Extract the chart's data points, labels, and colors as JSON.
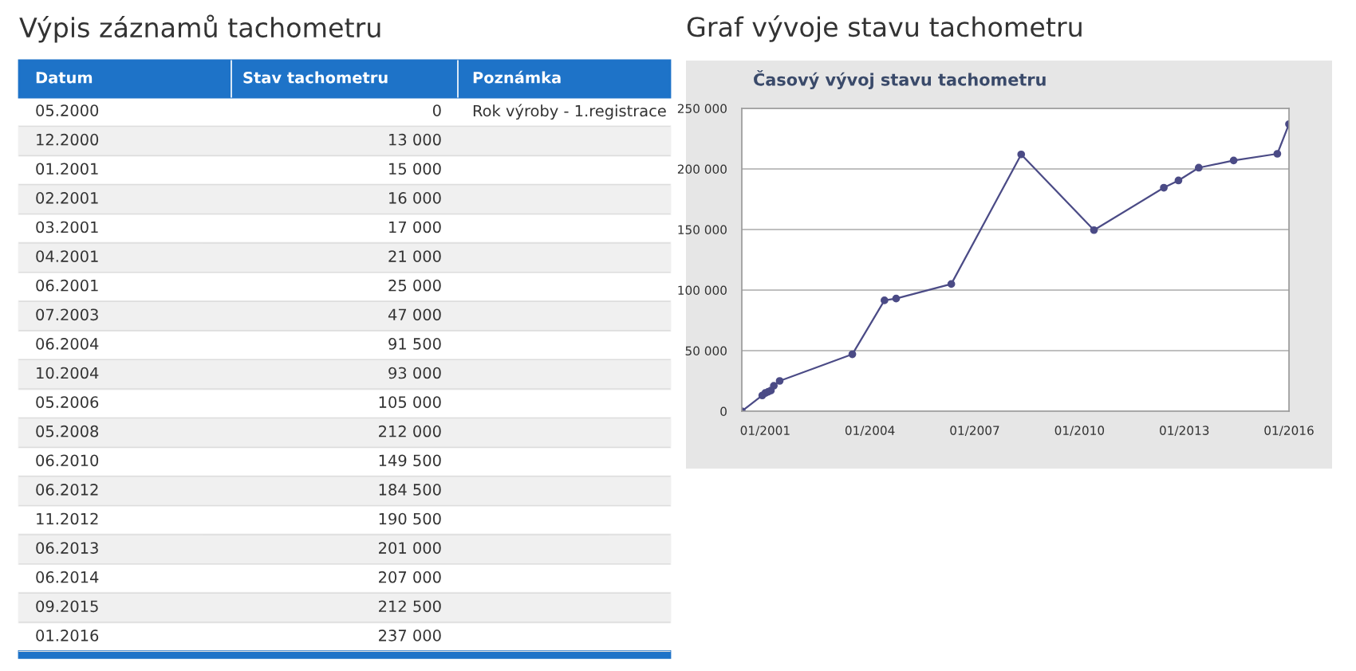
{
  "chart_data": [
    {
      "type": "other",
      "title": "Výpis záznamů tachometru",
      "annotations": [
        "Datum",
        "Stav tachometru",
        "Poznámka",
        "Rok výroby - 1.registrace"
      ],
      "categories": [
        "05.2000",
        "12.2000",
        "01.2001",
        "02.2001",
        "03.2001",
        "04.2001",
        "06.2001",
        "07.2003",
        "06.2004",
        "10.2004",
        "05.2006",
        "05.2008",
        "06.2010",
        "06.2012",
        "11.2012",
        "06.2013",
        "06.2014",
        "09.2015",
        "01.2016"
      ],
      "values": [
        0,
        13000,
        15000,
        16000,
        17000,
        21000,
        25000,
        47000,
        91500,
        93000,
        105000,
        212000,
        149500,
        184500,
        190500,
        201000,
        207000,
        212500,
        237000
      ],
      "data_labels": true
    },
    {
      "type": "line",
      "title": "Graf vývoje stavu tachometru",
      "subtitle": "Časový vývoj stavu tachometru",
      "x": [
        "2000-05",
        "2000-12",
        "2001-01",
        "2001-02",
        "2001-03",
        "2001-04",
        "2001-06",
        "2003-07",
        "2004-06",
        "2004-10",
        "2006-05",
        "2008-05",
        "2010-06",
        "2012-06",
        "2012-11",
        "2013-06",
        "2014-06",
        "2015-09",
        "2016-01"
      ],
      "series": [
        {
          "color": "#4b4b86",
          "values": [
            0,
            13000,
            15000,
            16000,
            17000,
            21000,
            25000,
            47000,
            91500,
            93000,
            105000,
            212000,
            149500,
            184500,
            190500,
            201000,
            207000,
            212500,
            237000
          ]
        }
      ],
      "xlim": [
        "2000-05",
        "2016-01"
      ],
      "xticks": [
        {
          "value": "2001-01",
          "label": "01/2001"
        },
        {
          "value": "2004-01",
          "label": "01/2004"
        },
        {
          "value": "2007-01",
          "label": "01/2007"
        },
        {
          "value": "2010-01",
          "label": "01/2010"
        },
        {
          "value": "2013-01",
          "label": "01/2013"
        },
        {
          "value": "2016-01",
          "label": "01/2016"
        }
      ],
      "ylim": [
        0,
        250000
      ],
      "yticks": [
        {
          "value": 0,
          "label": "0"
        },
        {
          "value": 50000,
          "label": "50 000"
        },
        {
          "value": 100000,
          "label": "100 000"
        },
        {
          "value": 150000,
          "label": "150 000"
        },
        {
          "value": 200000,
          "label": "200 000"
        },
        {
          "value": 250000,
          "label": "250 000"
        }
      ],
      "grid": "y",
      "marker": "circle",
      "line_style": "solid"
    }
  ]
}
